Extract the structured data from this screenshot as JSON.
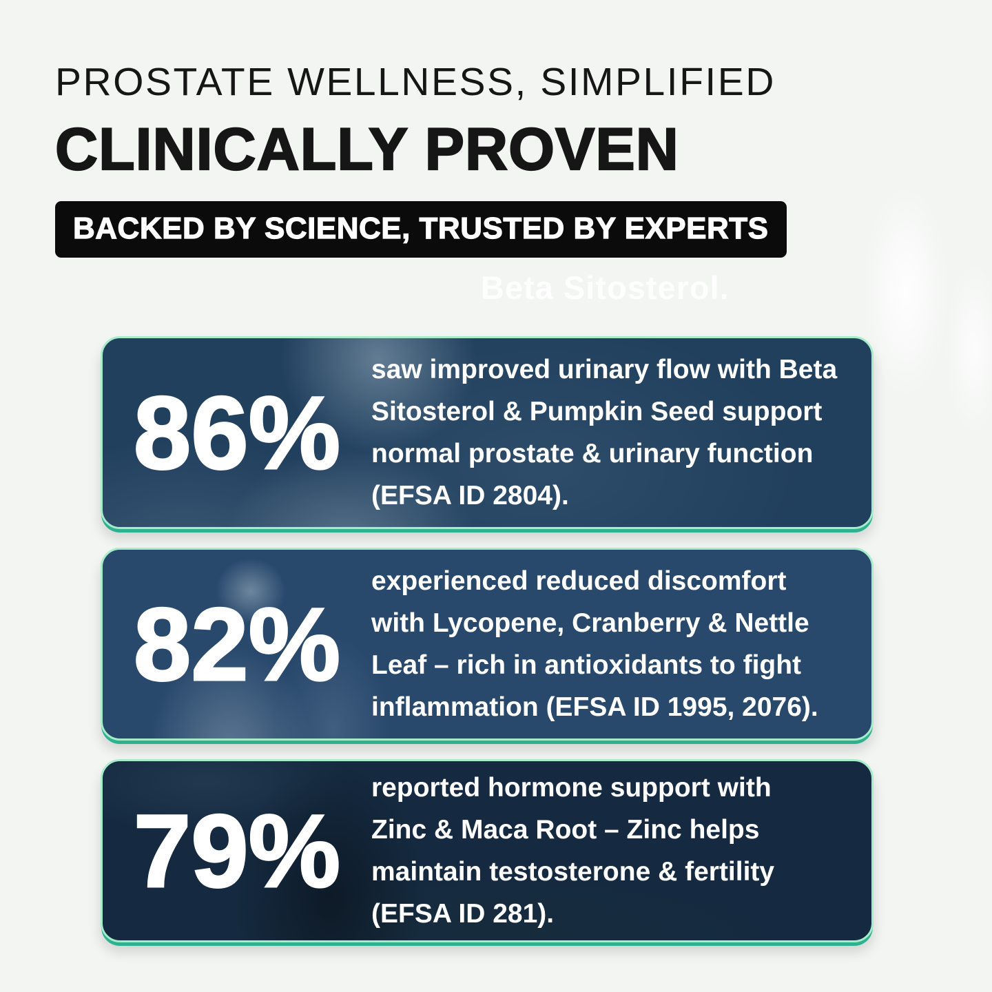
{
  "header": {
    "eyebrow": "PROSTATE WELLNESS, SIMPLIFIED",
    "title": "CLINICALLY PROVEN",
    "banner": "BACKED BY SCIENCE, TRUSTED BY EXPERTS"
  },
  "watermark": "Beta Sitosterol.",
  "stats": [
    {
      "percent": "86%",
      "text": "saw improved urinary flow with Beta\nSitosterol & Pumpkin Seed support\nnormal prostate & urinary function\n(EFSA ID 2804)."
    },
    {
      "percent": "82%",
      "text": "experienced reduced discomfort\nwith Lycopene, Cranberry & Nettle\nLeaf – rich in antioxidants to fight\ninflammation (EFSA ID 1995, 2076)."
    },
    {
      "percent": "79%",
      "text": " reported hormone support with\nZinc & Maca Root – Zinc helps\nmaintain testosterone & fertility\n(EFSA ID 281)."
    }
  ],
  "colors": {
    "background": "#f3f5f3",
    "heading": "#161616",
    "banner_bg": "#0b0b0b",
    "banner_text": "#ffffff",
    "watermark": "#fdfefd",
    "card_border": "#a6ecca",
    "card_glow": "#2eb18f",
    "card1_bg": "#21405e",
    "card2_bg": "#28486c",
    "card3_bg": "#152a40",
    "card_text": "#ffffff"
  }
}
